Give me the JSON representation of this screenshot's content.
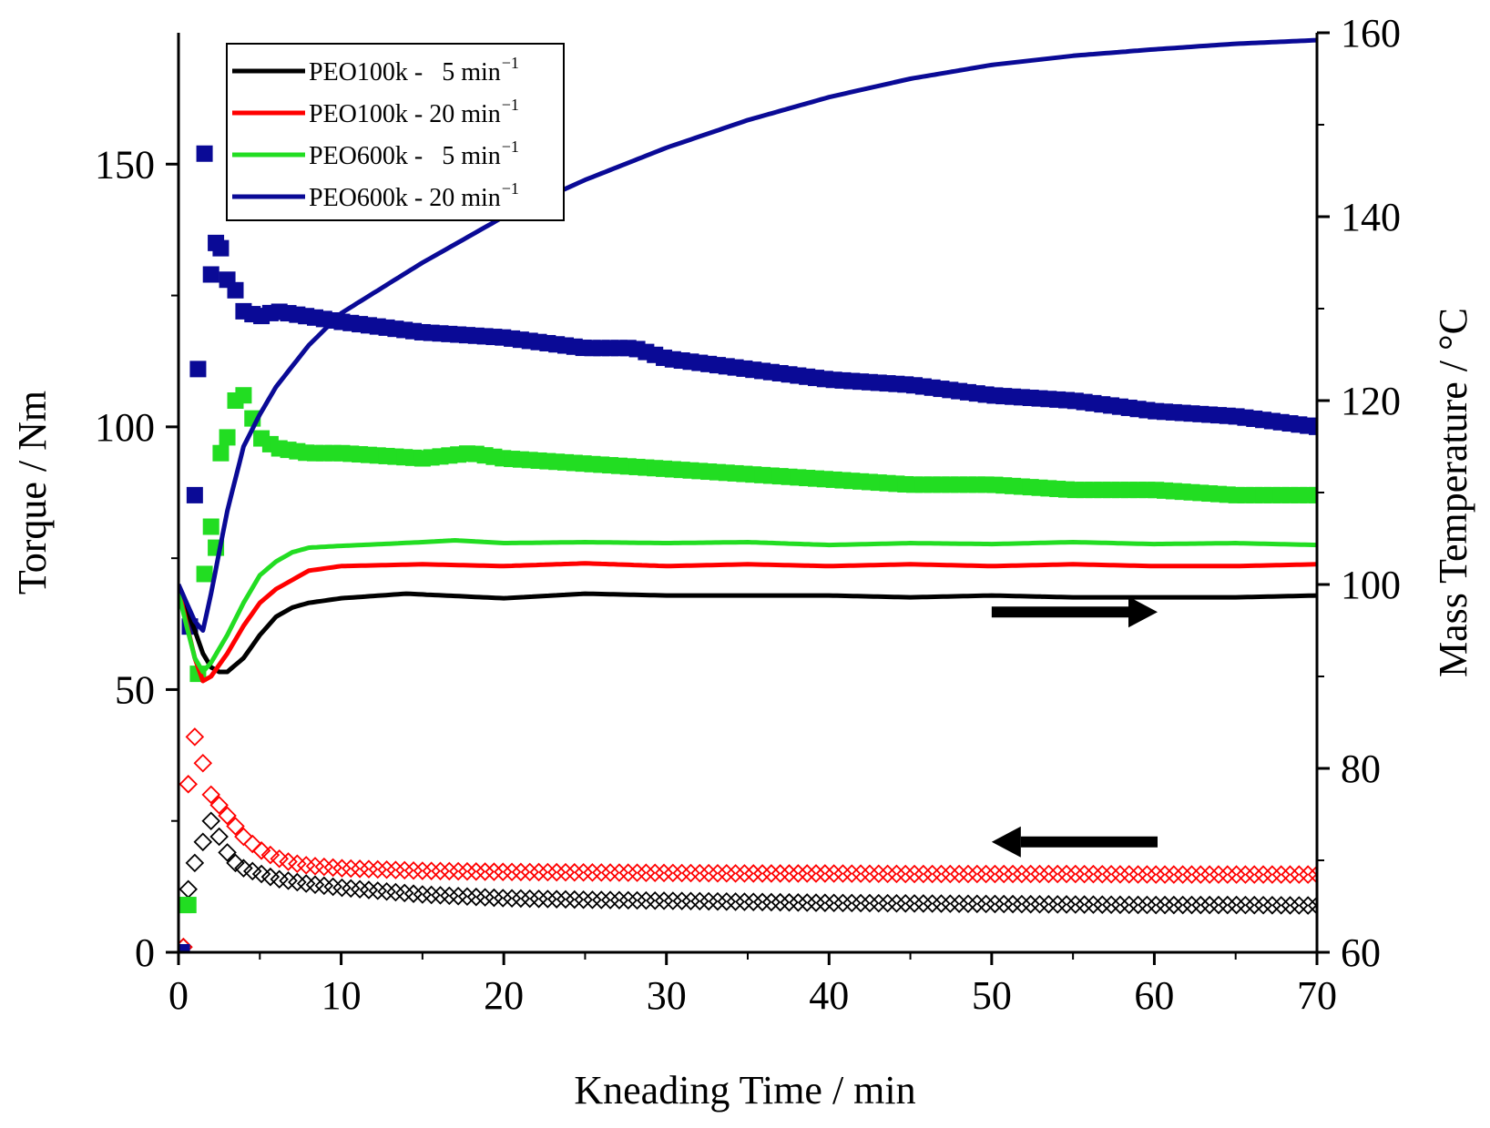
{
  "chart_data": {
    "type": "scatter+line",
    "title": "",
    "xlabel": "Kneading Time / min",
    "ylabel_left": "Torque / Nm",
    "ylabel_right": "Mass Temperature / °C",
    "xlim": [
      0,
      70
    ],
    "ylim_left": [
      0,
      175
    ],
    "ylim_right": [
      60,
      160
    ],
    "x_ticks": [
      "0",
      "10",
      "20",
      "30",
      "40",
      "50",
      "60",
      "70"
    ],
    "y_left_ticks": [
      "0",
      "50",
      "100",
      "150"
    ],
    "y_right_ticks": [
      "60",
      "80",
      "100",
      "120",
      "140",
      "160"
    ],
    "legend": {
      "placement": "top-left",
      "entries": [
        {
          "name": "PEO100k -   5 min",
          "sup": "−1",
          "color": "#000000"
        },
        {
          "name": "PEO100k - 20 min",
          "sup": "−1",
          "color": "#ff0000"
        },
        {
          "name": "PEO600k -   5 min",
          "sup": "−1",
          "color": "#22dd22"
        },
        {
          "name": "PEO600k - 20 min",
          "sup": "−1",
          "color": "#0a0a96"
        }
      ]
    },
    "temperature_series": [
      {
        "name": "PEO100k - 5 min-1",
        "color": "#000000",
        "axis": "right",
        "x": [
          0,
          1,
          1.5,
          2,
          2.5,
          3,
          4,
          5,
          6,
          7,
          8,
          10,
          14,
          20,
          25,
          30,
          35,
          40,
          45,
          50,
          55,
          60,
          65,
          70
        ],
        "y": [
          99.5,
          95,
          92.5,
          91,
          90.5,
          90.5,
          92,
          94.5,
          96.5,
          97.5,
          98,
          98.5,
          99,
          98.5,
          99,
          98.8,
          98.8,
          98.8,
          98.6,
          98.8,
          98.6,
          98.6,
          98.6,
          98.8
        ]
      },
      {
        "name": "PEO100k - 20 min-1",
        "color": "#ff0000",
        "axis": "right",
        "x": [
          0,
          1,
          1.5,
          2,
          3,
          4,
          5,
          6,
          7,
          8,
          10,
          15,
          20,
          25,
          30,
          35,
          40,
          45,
          50,
          55,
          60,
          65,
          70
        ],
        "y": [
          99.5,
          92,
          89.5,
          90,
          92.5,
          95.5,
          98,
          99.5,
          100.5,
          101.5,
          102,
          102.2,
          102,
          102.3,
          102,
          102.2,
          102,
          102.2,
          102,
          102.2,
          102,
          102,
          102.2
        ]
      },
      {
        "name": "PEO600k - 5 min-1",
        "color": "#22dd22",
        "axis": "right",
        "x": [
          0,
          1,
          1.5,
          2,
          3,
          4,
          5,
          6,
          7,
          8,
          10,
          15,
          17,
          20,
          25,
          30,
          35,
          40,
          45,
          50,
          55,
          60,
          65,
          70
        ],
        "y": [
          99,
          92,
          90.5,
          91.5,
          94.5,
          98,
          101,
          102.5,
          103.5,
          104,
          104.2,
          104.6,
          104.8,
          104.5,
          104.6,
          104.5,
          104.6,
          104.3,
          104.5,
          104.4,
          104.6,
          104.4,
          104.5,
          104.3
        ]
      },
      {
        "name": "PEO600k - 20 min-1",
        "color": "#0a0a96",
        "axis": "right",
        "x": [
          0,
          1,
          1.5,
          2,
          3,
          4,
          5,
          6,
          8,
          10,
          15,
          20,
          25,
          30,
          35,
          40,
          45,
          50,
          55,
          60,
          65,
          70
        ],
        "y": [
          100,
          96,
          95,
          99,
          108,
          115,
          118.5,
          121.5,
          126,
          129.5,
          135,
          140,
          144,
          147.5,
          150.5,
          153,
          155,
          156.5,
          157.5,
          158.2,
          158.8,
          159.2
        ]
      }
    ],
    "torque_series": [
      {
        "name": "PEO100k - 5 min-1",
        "color": "#000000",
        "marker": "open-diamond",
        "axis": "left",
        "x": [
          0.3,
          0.6,
          1,
          1.5,
          2,
          2.5,
          3,
          3.5,
          4,
          5,
          6,
          7,
          8,
          10,
          15,
          20,
          25,
          30,
          35,
          40,
          45,
          50,
          55,
          60,
          65,
          70
        ],
        "y": [
          1,
          12,
          17,
          21,
          25,
          22,
          19,
          17,
          16,
          15,
          14,
          13.5,
          13,
          12.3,
          11,
          10.3,
          10,
          9.8,
          9.6,
          9.4,
          9.3,
          9.2,
          9.1,
          9,
          9,
          8.9
        ]
      },
      {
        "name": "PEO100k - 20 min-1",
        "color": "#ff0000",
        "marker": "open-diamond",
        "axis": "left",
        "x": [
          0.3,
          0.6,
          1,
          1.5,
          2,
          2.5,
          3,
          3.5,
          4,
          5,
          6,
          7,
          8,
          10,
          15,
          20,
          25,
          30,
          35,
          40,
          45,
          50,
          55,
          60,
          65,
          70
        ],
        "y": [
          1,
          32,
          41,
          36,
          30,
          28,
          26,
          24,
          22,
          19.5,
          18,
          17,
          16.5,
          16,
          15.5,
          15.3,
          15.2,
          15.1,
          15,
          15,
          14.9,
          14.9,
          14.9,
          14.8,
          14.8,
          14.8
        ]
      },
      {
        "name": "PEO600k - 5 min-1",
        "color": "#22dd22",
        "marker": "filled-square",
        "axis": "left",
        "x": [
          0.3,
          0.6,
          1.2,
          1.6,
          2,
          2.3,
          2.6,
          3,
          3.5,
          4,
          5,
          6,
          8,
          10,
          15,
          18,
          20,
          25,
          30,
          35,
          40,
          45,
          50,
          55,
          60,
          65,
          70
        ],
        "y": [
          9,
          9,
          53,
          72,
          81,
          77,
          95,
          98,
          105,
          106,
          98,
          96,
          95,
          95,
          94,
          95,
          94,
          93,
          92,
          91,
          90,
          89,
          89,
          88,
          88,
          87,
          87
        ]
      },
      {
        "name": "PEO600k - 20 min-1",
        "color": "#0a0a96",
        "marker": "filled-square",
        "axis": "left",
        "x": [
          0.2,
          0.7,
          1,
          1.2,
          1.6,
          2,
          2.3,
          2.6,
          3,
          3.5,
          4,
          5,
          6,
          8,
          10,
          15,
          20,
          25,
          28,
          30,
          35,
          40,
          45,
          50,
          55,
          60,
          65,
          70
        ],
        "y": [
          0,
          62,
          87,
          111,
          152,
          129,
          135,
          134,
          128,
          126,
          122,
          121,
          122,
          121,
          120,
          118,
          117,
          115,
          115,
          113,
          111,
          109,
          108,
          106,
          105,
          103,
          102,
          100
        ]
      }
    ],
    "annotations": [
      {
        "type": "arrow",
        "direction": "right",
        "meaning": "temperature curves refer to right axis",
        "x_from": 50,
        "x_to": 60.2,
        "y_right": 97
      },
      {
        "type": "arrow",
        "direction": "left",
        "meaning": "torque markers refer to left axis",
        "x_from": 60.2,
        "x_to": 50,
        "y_left": 21
      }
    ]
  }
}
